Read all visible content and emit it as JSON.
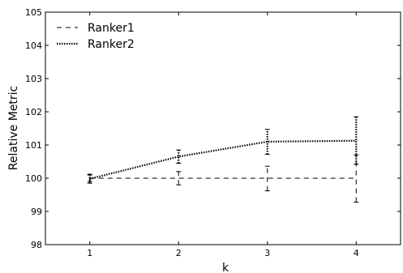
{
  "chart_data": {
    "type": "line",
    "title": "",
    "xlabel": "k",
    "ylabel": "Relative Metric",
    "x": [
      1,
      2,
      3,
      4
    ],
    "xticks": [
      "1",
      "2",
      "3",
      "4"
    ],
    "xlim": [
      0.5,
      4.5
    ],
    "ylim": [
      98,
      105
    ],
    "yticks": [
      "98",
      "99",
      "100",
      "101",
      "102",
      "103",
      "104",
      "105"
    ],
    "grid": false,
    "legend_position": "top-left",
    "series": [
      {
        "name": "Ranker1",
        "line_style": "dashed",
        "values": [
          100,
          100,
          100,
          100
        ],
        "err_low": [
          99.9,
          99.8,
          99.62,
          99.28
        ],
        "err_high": [
          100.1,
          100.2,
          100.36,
          100.7
        ]
      },
      {
        "name": "Ranker2",
        "line_style": "dotted",
        "values": [
          99.98,
          100.65,
          101.1,
          101.13
        ],
        "err_low": [
          99.85,
          100.45,
          100.72,
          100.42
        ],
        "err_high": [
          100.12,
          100.85,
          101.47,
          101.85
        ]
      }
    ]
  }
}
